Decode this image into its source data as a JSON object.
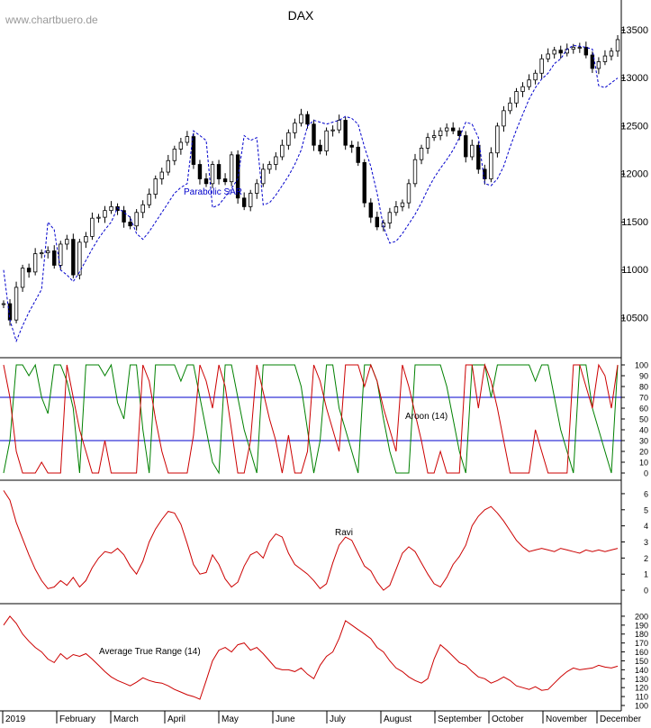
{
  "watermark": "www.chartbuero.de",
  "colors": {
    "background": "#ffffff",
    "candles": "#000000",
    "sar": "#0000cc",
    "aroon_up": "#008000",
    "aroon_down": "#cc0000",
    "aroon_levels": "#0000cc",
    "ravi": "#cc0000",
    "atr": "#cc0000",
    "grid": "#000000"
  },
  "chart_data": [
    {
      "type": "candlestick",
      "title": "DAX",
      "annotation": "Parabolic SAR",
      "ylim": [
        10200,
        13700
      ],
      "y_ticks": [
        10500,
        11000,
        11500,
        12000,
        12500,
        13000,
        13500
      ],
      "series": [
        {
          "name": "DAX",
          "values": [
            10650,
            10480,
            10820,
            11020,
            10980,
            11170,
            11180,
            11200,
            11050,
            11270,
            11320,
            10950,
            11290,
            11350,
            11540,
            11550,
            11620,
            11660,
            11620,
            11500,
            11460,
            11600,
            11680,
            11790,
            11950,
            12020,
            12140,
            12260,
            12330,
            12390,
            12100,
            11950,
            11900,
            12100,
            11950,
            11920,
            12200,
            11750,
            11660,
            11800,
            11900,
            12050,
            12100,
            12180,
            12300,
            12430,
            12530,
            12620,
            12520,
            12300,
            12240,
            12450,
            12460,
            12560,
            12300,
            12280,
            12120,
            11700,
            11550,
            11450,
            11490,
            11600,
            11660,
            11700,
            11900,
            12150,
            12270,
            12380,
            12400,
            12450,
            12480,
            12450,
            12400,
            12180,
            12300,
            12050,
            11950,
            12220,
            12500,
            12660,
            12740,
            12860,
            12910,
            12980,
            13050,
            13200,
            13250,
            13290,
            13260,
            13300,
            13320,
            13320,
            13240,
            13100,
            13170,
            13230,
            13280,
            13400
          ]
        },
        {
          "name": "Parabolic SAR",
          "values": [
            11000,
            10480,
            10260,
            10420,
            10560,
            10680,
            10800,
            11500,
            11420,
            11000,
            10950,
            10880,
            10980,
            11100,
            11220,
            11330,
            11420,
            11500,
            11650,
            11600,
            11550,
            11380,
            11320,
            11400,
            11500,
            11600,
            11700,
            11800,
            11860,
            11900,
            12450,
            12400,
            12350,
            11650,
            11680,
            11760,
            11850,
            11950,
            12400,
            12350,
            12380,
            11680,
            11700,
            11780,
            11880,
            11980,
            12100,
            12250,
            12500,
            12560,
            12540,
            12520,
            12540,
            12560,
            12600,
            12580,
            12520,
            12280,
            12080,
            11800,
            11450,
            11280,
            11300,
            11380,
            11480,
            11580,
            11700,
            11840,
            11960,
            12060,
            12150,
            12250,
            12380,
            12540,
            12520,
            12380,
            11900,
            11880,
            11950,
            12080,
            12280,
            12460,
            12620,
            12780,
            12900,
            12990,
            13050,
            13150,
            13200,
            13300,
            13340,
            13330,
            13320,
            13300,
            12920,
            12900,
            12950,
            13000
          ]
        }
      ],
      "x_labels": [
        "2019",
        "February",
        "March",
        "April",
        "May",
        "June",
        "July",
        "August",
        "September",
        "October",
        "November",
        "December"
      ]
    },
    {
      "type": "line",
      "title": "Aroon (14)",
      "ylim": [
        0,
        100
      ],
      "y_ticks": [
        0,
        10,
        20,
        30,
        40,
        50,
        60,
        70,
        80,
        90,
        100
      ],
      "levels": [
        30,
        70
      ],
      "series": [
        {
          "name": "Aroon Up",
          "values": [
            0,
            30,
            100,
            100,
            90,
            100,
            70,
            55,
            100,
            100,
            85,
            60,
            0,
            100,
            100,
            100,
            90,
            100,
            65,
            50,
            100,
            100,
            40,
            0,
            100,
            100,
            100,
            100,
            85,
            100,
            100,
            70,
            40,
            10,
            0,
            100,
            100,
            70,
            40,
            20,
            0,
            100,
            100,
            100,
            100,
            100,
            100,
            80,
            40,
            0,
            30,
            100,
            100,
            60,
            40,
            20,
            0,
            100,
            100,
            85,
            50,
            20,
            0,
            0,
            0,
            100,
            100,
            100,
            100,
            100,
            80,
            50,
            20,
            0,
            100,
            100,
            100,
            70,
            100,
            100,
            100,
            100,
            100,
            100,
            85,
            100,
            100,
            70,
            40,
            20,
            0,
            100,
            100,
            60,
            40,
            20,
            0,
            100
          ]
        },
        {
          "name": "Aroon Down",
          "values": [
            100,
            70,
            20,
            0,
            0,
            0,
            10,
            0,
            0,
            0,
            100,
            70,
            40,
            20,
            0,
            0,
            30,
            0,
            0,
            0,
            0,
            0,
            100,
            85,
            50,
            20,
            0,
            0,
            0,
            0,
            35,
            100,
            85,
            60,
            100,
            80,
            40,
            0,
            0,
            30,
            100,
            75,
            50,
            30,
            0,
            35,
            0,
            0,
            20,
            100,
            85,
            60,
            40,
            20,
            100,
            100,
            100,
            80,
            100,
            85,
            60,
            40,
            20,
            100,
            80,
            55,
            30,
            0,
            0,
            20,
            0,
            0,
            0,
            100,
            100,
            60,
            100,
            85,
            60,
            30,
            0,
            0,
            0,
            0,
            40,
            20,
            0,
            0,
            0,
            0,
            100,
            100,
            80,
            60,
            100,
            90,
            60,
            100
          ]
        }
      ]
    },
    {
      "type": "line",
      "title": "Ravi",
      "ylim": [
        -0.5,
        6.5
      ],
      "y_ticks": [
        0,
        1,
        2,
        3,
        4,
        5,
        6
      ],
      "series": [
        {
          "name": "Ravi",
          "values": [
            6.2,
            5.6,
            4.2,
            3.2,
            2.2,
            1.3,
            0.6,
            0.1,
            0.2,
            0.6,
            0.3,
            0.8,
            0.2,
            0.6,
            1.4,
            2.0,
            2.4,
            2.3,
            2.6,
            2.2,
            1.5,
            1.0,
            1.8,
            3.0,
            3.8,
            4.4,
            4.9,
            4.8,
            4.1,
            2.9,
            1.6,
            1.0,
            1.1,
            2.2,
            1.6,
            0.7,
            0.2,
            0.5,
            1.5,
            2.2,
            2.4,
            2.0,
            3.0,
            3.5,
            3.3,
            2.3,
            1.6,
            1.3,
            1.0,
            0.6,
            0.1,
            0.4,
            1.7,
            2.8,
            3.3,
            3.1,
            2.3,
            1.5,
            1.2,
            0.5,
            0.0,
            0.3,
            1.3,
            2.3,
            2.7,
            2.4,
            1.7,
            1.0,
            0.4,
            0.2,
            0.8,
            1.6,
            2.1,
            2.8,
            4.0,
            4.6,
            5.0,
            5.2,
            4.8,
            4.3,
            3.7,
            3.1,
            2.7,
            2.4,
            2.5,
            2.6,
            2.5,
            2.4,
            2.6,
            2.5,
            2.4,
            2.3,
            2.5,
            2.4,
            2.5,
            2.4,
            2.5,
            2.6
          ]
        }
      ]
    },
    {
      "type": "line",
      "title": "Average True Range (14)",
      "ylim": [
        100,
        208
      ],
      "y_ticks": [
        100,
        110,
        120,
        130,
        140,
        150,
        160,
        170,
        180,
        190,
        200
      ],
      "series": [
        {
          "name": "Average True Range (14)",
          "values": [
            190,
            200,
            192,
            180,
            172,
            165,
            160,
            152,
            148,
            158,
            152,
            157,
            155,
            158,
            152,
            145,
            138,
            132,
            128,
            125,
            122,
            126,
            131,
            128,
            126,
            125,
            122,
            118,
            115,
            112,
            110,
            107,
            128,
            150,
            162,
            165,
            160,
            168,
            170,
            162,
            165,
            158,
            150,
            142,
            140,
            140,
            138,
            142,
            135,
            130,
            145,
            155,
            160,
            175,
            195,
            190,
            185,
            180,
            175,
            165,
            160,
            150,
            142,
            138,
            132,
            128,
            125,
            130,
            152,
            168,
            162,
            155,
            148,
            145,
            138,
            132,
            130,
            125,
            128,
            132,
            128,
            122,
            120,
            118,
            121,
            117,
            118,
            125,
            132,
            138,
            142,
            140,
            141,
            142,
            145,
            143,
            142,
            144
          ]
        }
      ]
    }
  ]
}
